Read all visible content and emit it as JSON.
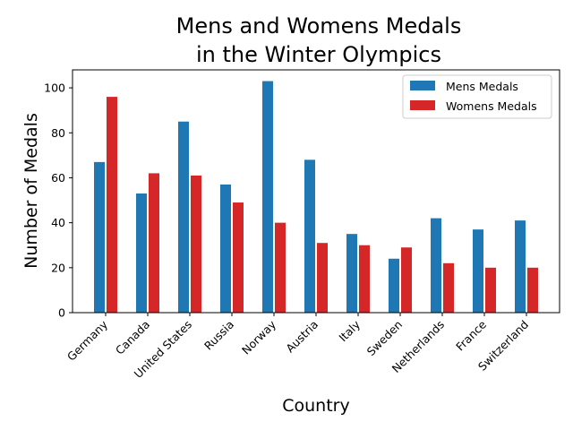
{
  "chart_data": {
    "type": "bar",
    "title_lines": [
      "Mens and Womens Medals",
      "in the Winter Olympics"
    ],
    "xlabel": "Country",
    "ylabel": "Number of Medals",
    "categories": [
      "Germany",
      "Canada",
      "United States",
      "Russia",
      "Norway",
      "Austria",
      "Italy",
      "Sweden",
      "Netherlands",
      "France",
      "Switzerland"
    ],
    "series": [
      {
        "name": "Mens Medals",
        "color": "#1f77b4",
        "values": [
          67,
          53,
          85,
          57,
          103,
          68,
          35,
          24,
          42,
          37,
          41
        ]
      },
      {
        "name": "Womens Medals",
        "color": "#d62728",
        "values": [
          96,
          62,
          61,
          49,
          40,
          31,
          30,
          29,
          22,
          20,
          20
        ]
      }
    ],
    "ylim": [
      0,
      108
    ],
    "yticks": [
      0,
      20,
      40,
      60,
      80,
      100
    ],
    "grid": false,
    "legend": "top-right"
  }
}
